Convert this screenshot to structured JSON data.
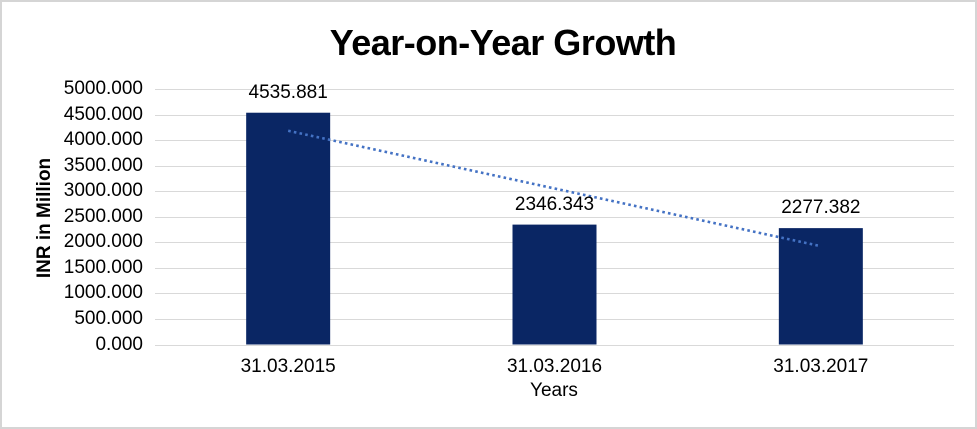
{
  "frame": {
    "background": "#FFFFFF",
    "border_color": "#D5D5D5"
  },
  "chart_data": {
    "type": "bar",
    "title": "Year-on-Year Growth",
    "categories": [
      "31.03.2015",
      "31.03.2016",
      "31.03.2017"
    ],
    "values": [
      4535.881,
      2346.343,
      2277.382
    ],
    "data_labels": [
      "4535.881",
      "2346.343",
      "2277.382"
    ],
    "xlabel": "Years",
    "ylabel": "INR in Million",
    "ylim": [
      0,
      5000
    ],
    "ytick_step": 500,
    "ytick_labels": [
      "0.000",
      "500.000",
      "1000.000",
      "1500.000",
      "2000.000",
      "2500.000",
      "3000.000",
      "3500.000",
      "4000.000",
      "4500.000",
      "5000.000"
    ],
    "grid": true,
    "legend": "none",
    "bar_color": "#0A2664",
    "gridline_color": "#D9D9D9",
    "text_color": "#000000",
    "trendline": {
      "type": "linear",
      "style": "dotted",
      "color": "#4472C4"
    }
  }
}
